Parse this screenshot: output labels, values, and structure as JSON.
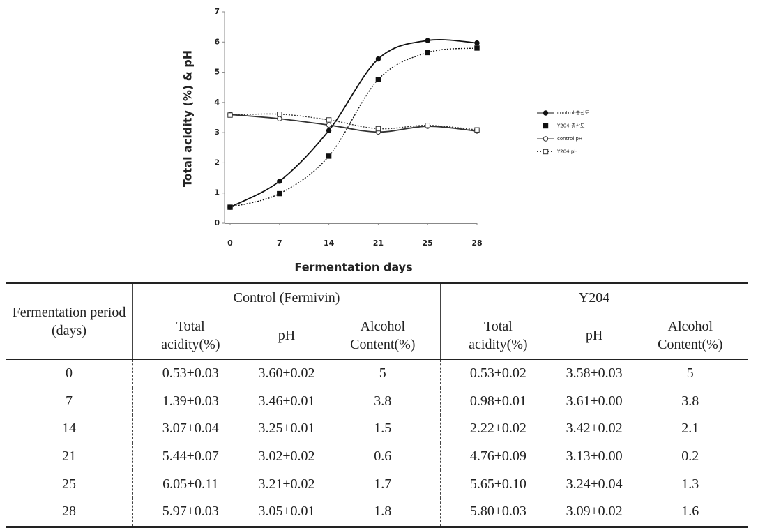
{
  "chart_data": {
    "type": "line",
    "y_label": "Total acidity (%) & pH",
    "x_label": "Fermentation days",
    "categories": [
      "0",
      "7",
      "14",
      "21",
      "25",
      "28"
    ],
    "ylim": [
      0,
      7
    ],
    "yticks": [
      0,
      1,
      2,
      3,
      4,
      5,
      6,
      7
    ],
    "legend": "right",
    "series": [
      {
        "name": "control-총산도",
        "color": "#111111",
        "style": "solid",
        "marker": "circle",
        "marker_fill": "filled",
        "values": [
          0.53,
          1.39,
          3.07,
          5.44,
          6.05,
          5.97
        ]
      },
      {
        "name": "Y204-총산도",
        "color": "#111111",
        "style": "dotted",
        "marker": "square",
        "marker_fill": "filled",
        "values": [
          0.53,
          0.98,
          2.22,
          4.76,
          5.65,
          5.8
        ]
      },
      {
        "name": "control pH",
        "color": "#333333",
        "style": "solid",
        "marker": "circle",
        "marker_fill": "open",
        "values": [
          3.6,
          3.46,
          3.25,
          3.02,
          3.21,
          3.05
        ]
      },
      {
        "name": "Y204 pH",
        "color": "#333333",
        "style": "dotted",
        "marker": "square",
        "marker_fill": "open",
        "values": [
          3.58,
          3.61,
          3.42,
          3.13,
          3.24,
          3.09
        ]
      }
    ]
  },
  "table": {
    "group_headers": [
      "Fermentation period (days)",
      "Control (Fermivin)",
      "Y204"
    ],
    "sub_headers": [
      "Total acidity(%)",
      "pH",
      "Alcohol Content(%)",
      "Total acidity(%)",
      "pH",
      "Alcohol Content(%)"
    ],
    "rows": [
      [
        "0",
        "0.53±0.03",
        "3.60±0.02",
        "5",
        "0.53±0.02",
        "3.58±0.03",
        "5"
      ],
      [
        "7",
        "1.39±0.03",
        "3.46±0.01",
        "3.8",
        "0.98±0.01",
        "3.61±0.00",
        "3.8"
      ],
      [
        "14",
        "3.07±0.04",
        "3.25±0.01",
        "1.5",
        "2.22±0.02",
        "3.42±0.02",
        "2.1"
      ],
      [
        "21",
        "5.44±0.07",
        "3.02±0.02",
        "0.6",
        "4.76±0.09",
        "3.13±0.00",
        "0.2"
      ],
      [
        "25",
        "6.05±0.11",
        "3.21±0.02",
        "1.7",
        "5.65±0.10",
        "3.24±0.04",
        "1.3"
      ],
      [
        "28",
        "5.97±0.03",
        "3.05±0.01",
        "1.8",
        "5.80±0.03",
        "3.09±0.02",
        "1.6"
      ]
    ]
  }
}
